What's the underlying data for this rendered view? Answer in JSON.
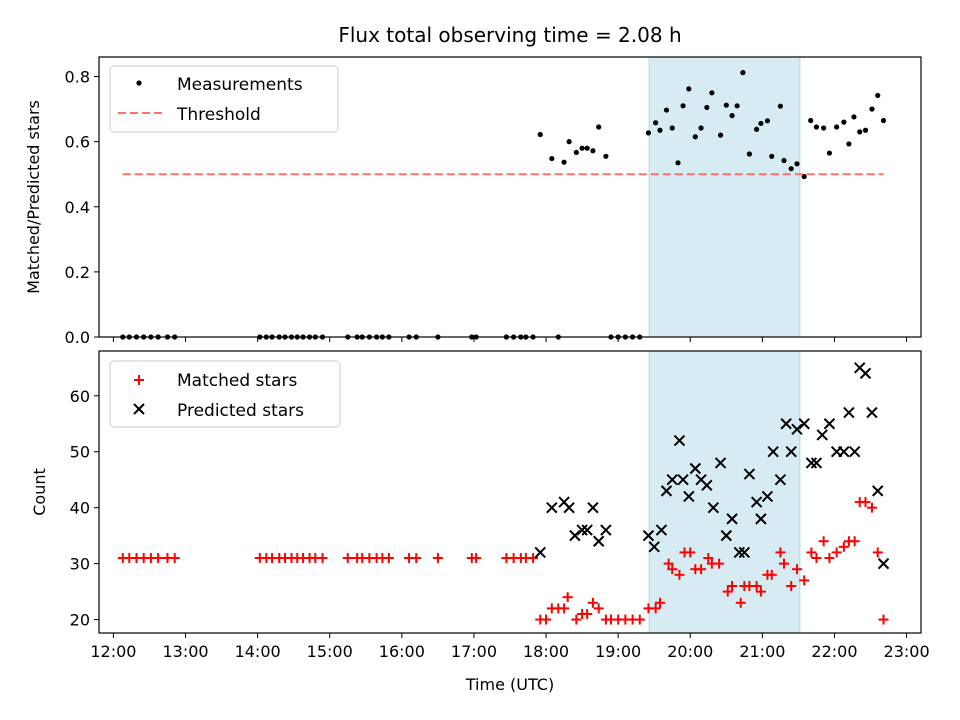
{
  "figure": {
    "title": "Flux total observing time = 2.08 h",
    "xlabel": "Time (UTC)"
  },
  "colors": {
    "measurement": "#000000",
    "threshold": "#ff7070",
    "matched": "#ff0000",
    "predicted": "#000000",
    "highlight": "#add8e6"
  },
  "chart_data": [
    {
      "type": "scatter",
      "ylabel": "Matched/Predicted stars",
      "xlim": [
        11.8,
        23.2
      ],
      "ylim": [
        0,
        0.86
      ],
      "yticks": [
        0.0,
        0.2,
        0.4,
        0.6,
        0.8
      ],
      "grid": false,
      "legend_position": "top-left",
      "highlight_span": [
        19.43,
        21.52
      ],
      "series": [
        {
          "name": "Measurements",
          "marker": "dot",
          "points": [
            [
              12.13,
              0
            ],
            [
              12.22,
              0
            ],
            [
              12.32,
              0
            ],
            [
              12.42,
              0
            ],
            [
              12.52,
              0
            ],
            [
              12.62,
              0
            ],
            [
              12.75,
              0
            ],
            [
              12.85,
              0
            ],
            [
              14.03,
              0
            ],
            [
              14.12,
              0
            ],
            [
              14.2,
              0
            ],
            [
              14.3,
              0
            ],
            [
              14.38,
              0
            ],
            [
              14.47,
              0
            ],
            [
              14.55,
              0
            ],
            [
              14.63,
              0
            ],
            [
              14.72,
              0
            ],
            [
              14.8,
              0
            ],
            [
              14.9,
              0
            ],
            [
              15.25,
              0
            ],
            [
              15.38,
              0
            ],
            [
              15.45,
              0
            ],
            [
              15.55,
              0
            ],
            [
              15.65,
              0
            ],
            [
              15.73,
              0
            ],
            [
              15.82,
              0
            ],
            [
              16.1,
              0
            ],
            [
              16.2,
              0
            ],
            [
              16.5,
              0
            ],
            [
              16.97,
              0
            ],
            [
              17.03,
              0
            ],
            [
              17.45,
              0
            ],
            [
              17.55,
              0
            ],
            [
              17.65,
              0
            ],
            [
              17.72,
              0
            ],
            [
              17.82,
              0
            ],
            [
              18.17,
              0
            ],
            [
              18.9,
              0
            ],
            [
              19.0,
              0
            ],
            [
              19.1,
              0
            ],
            [
              19.2,
              0
            ],
            [
              19.3,
              0
            ],
            [
              17.92,
              0.622
            ],
            [
              18.08,
              0.548
            ],
            [
              18.25,
              0.537
            ],
            [
              18.32,
              0.6
            ],
            [
              18.42,
              0.567
            ],
            [
              18.5,
              0.58
            ],
            [
              18.57,
              0.58
            ],
            [
              18.65,
              0.572
            ],
            [
              18.73,
              0.645
            ],
            [
              18.83,
              0.555
            ],
            [
              19.42,
              0.627
            ],
            [
              19.52,
              0.658
            ],
            [
              19.58,
              0.635
            ],
            [
              19.67,
              0.697
            ],
            [
              19.75,
              0.642
            ],
            [
              19.83,
              0.535
            ],
            [
              19.9,
              0.71
            ],
            [
              19.98,
              0.762
            ],
            [
              20.07,
              0.615
            ],
            [
              20.15,
              0.642
            ],
            [
              20.23,
              0.705
            ],
            [
              20.3,
              0.75
            ],
            [
              20.42,
              0.62
            ],
            [
              20.5,
              0.712
            ],
            [
              20.58,
              0.68
            ],
            [
              20.65,
              0.71
            ],
            [
              20.73,
              0.812
            ],
            [
              20.82,
              0.562
            ],
            [
              20.92,
              0.638
            ],
            [
              20.98,
              0.656
            ],
            [
              21.07,
              0.664
            ],
            [
              21.13,
              0.555
            ],
            [
              21.25,
              0.709
            ],
            [
              21.3,
              0.542
            ],
            [
              21.4,
              0.517
            ],
            [
              21.48,
              0.532
            ],
            [
              21.58,
              0.493
            ],
            [
              21.67,
              0.665
            ],
            [
              21.75,
              0.645
            ],
            [
              21.85,
              0.642
            ],
            [
              21.93,
              0.565
            ],
            [
              22.03,
              0.645
            ],
            [
              22.13,
              0.66
            ],
            [
              22.2,
              0.593
            ],
            [
              22.27,
              0.676
            ],
            [
              22.35,
              0.63
            ],
            [
              22.43,
              0.635
            ],
            [
              22.52,
              0.7
            ],
            [
              22.6,
              0.742
            ],
            [
              22.68,
              0.665
            ]
          ]
        },
        {
          "name": "Threshold",
          "marker": "dashed-line",
          "points": [
            [
              12.13,
              0.5
            ],
            [
              22.68,
              0.5
            ]
          ]
        }
      ]
    },
    {
      "type": "scatter",
      "ylabel": "Count",
      "xlabel": "Time (UTC)",
      "xlim": [
        11.8,
        23.2
      ],
      "ylim": [
        17.6,
        68.0
      ],
      "yticks": [
        20,
        30,
        40,
        50,
        60
      ],
      "xtick_positions": [
        12,
        13,
        14,
        15,
        16,
        17,
        18,
        19,
        20,
        21,
        22,
        23
      ],
      "xtick_labels": [
        "12:00",
        "13:00",
        "14:00",
        "15:00",
        "16:00",
        "17:00",
        "18:00",
        "19:00",
        "20:00",
        "21:00",
        "22:00",
        "23:00"
      ],
      "grid": false,
      "legend_position": "top-left",
      "highlight_span": [
        19.43,
        21.52
      ],
      "series": [
        {
          "name": "Matched stars",
          "marker": "plus",
          "points": [
            [
              12.13,
              31
            ],
            [
              12.22,
              31
            ],
            [
              12.32,
              31
            ],
            [
              12.42,
              31
            ],
            [
              12.52,
              31
            ],
            [
              12.62,
              31
            ],
            [
              12.75,
              31
            ],
            [
              12.85,
              31
            ],
            [
              14.03,
              31
            ],
            [
              14.12,
              31
            ],
            [
              14.2,
              31
            ],
            [
              14.3,
              31
            ],
            [
              14.38,
              31
            ],
            [
              14.47,
              31
            ],
            [
              14.55,
              31
            ],
            [
              14.63,
              31
            ],
            [
              14.72,
              31
            ],
            [
              14.8,
              31
            ],
            [
              14.9,
              31
            ],
            [
              15.25,
              31
            ],
            [
              15.38,
              31
            ],
            [
              15.45,
              31
            ],
            [
              15.55,
              31
            ],
            [
              15.65,
              31
            ],
            [
              15.73,
              31
            ],
            [
              15.82,
              31
            ],
            [
              16.1,
              31
            ],
            [
              16.2,
              31
            ],
            [
              16.5,
              31
            ],
            [
              16.97,
              31
            ],
            [
              17.03,
              31
            ],
            [
              17.45,
              31
            ],
            [
              17.55,
              31
            ],
            [
              17.65,
              31
            ],
            [
              17.72,
              31
            ],
            [
              17.82,
              31
            ],
            [
              17.92,
              20
            ],
            [
              18.0,
              20
            ],
            [
              18.08,
              22
            ],
            [
              18.17,
              22
            ],
            [
              18.25,
              22
            ],
            [
              18.3,
              24
            ],
            [
              18.42,
              20
            ],
            [
              18.5,
              21
            ],
            [
              18.57,
              21
            ],
            [
              18.65,
              23
            ],
            [
              18.73,
              22
            ],
            [
              18.83,
              20
            ],
            [
              18.9,
              20
            ],
            [
              19.0,
              20
            ],
            [
              19.1,
              20
            ],
            [
              19.2,
              20
            ],
            [
              19.3,
              20
            ],
            [
              19.42,
              22
            ],
            [
              19.52,
              22
            ],
            [
              19.58,
              23
            ],
            [
              19.7,
              30
            ],
            [
              19.75,
              29
            ],
            [
              19.85,
              28
            ],
            [
              19.92,
              32
            ],
            [
              20.0,
              32
            ],
            [
              20.07,
              29
            ],
            [
              20.15,
              29
            ],
            [
              20.25,
              31
            ],
            [
              20.3,
              30
            ],
            [
              20.4,
              30
            ],
            [
              20.52,
              25
            ],
            [
              20.58,
              26
            ],
            [
              20.7,
              23
            ],
            [
              20.75,
              26
            ],
            [
              20.82,
              26
            ],
            [
              20.92,
              26
            ],
            [
              20.98,
              25
            ],
            [
              21.07,
              28
            ],
            [
              21.13,
              28
            ],
            [
              21.25,
              32
            ],
            [
              21.3,
              30
            ],
            [
              21.4,
              26
            ],
            [
              21.48,
              29
            ],
            [
              21.58,
              27
            ],
            [
              21.68,
              32
            ],
            [
              21.75,
              31
            ],
            [
              21.85,
              34
            ],
            [
              21.93,
              31
            ],
            [
              22.03,
              32
            ],
            [
              22.13,
              33
            ],
            [
              22.2,
              34
            ],
            [
              22.28,
              34
            ],
            [
              22.35,
              41
            ],
            [
              22.43,
              41
            ],
            [
              22.52,
              40
            ],
            [
              22.6,
              32
            ],
            [
              22.68,
              20
            ]
          ]
        },
        {
          "name": "Predicted stars",
          "marker": "x",
          "points": [
            [
              17.92,
              32
            ],
            [
              18.08,
              40
            ],
            [
              18.25,
              41
            ],
            [
              18.32,
              40
            ],
            [
              18.4,
              35
            ],
            [
              18.5,
              36
            ],
            [
              18.57,
              36
            ],
            [
              18.65,
              40
            ],
            [
              18.73,
              34
            ],
            [
              18.83,
              36
            ],
            [
              19.42,
              35
            ],
            [
              19.5,
              33
            ],
            [
              19.6,
              36
            ],
            [
              19.67,
              43
            ],
            [
              19.75,
              45
            ],
            [
              19.85,
              52
            ],
            [
              19.9,
              45
            ],
            [
              19.98,
              42
            ],
            [
              20.07,
              47
            ],
            [
              20.15,
              45
            ],
            [
              20.23,
              44
            ],
            [
              20.32,
              40
            ],
            [
              20.42,
              48
            ],
            [
              20.5,
              35
            ],
            [
              20.58,
              38
            ],
            [
              20.68,
              32
            ],
            [
              20.75,
              32
            ],
            [
              20.82,
              46
            ],
            [
              20.92,
              41
            ],
            [
              20.98,
              38
            ],
            [
              21.07,
              42
            ],
            [
              21.15,
              50
            ],
            [
              21.25,
              45
            ],
            [
              21.33,
              55
            ],
            [
              21.4,
              50
            ],
            [
              21.48,
              54
            ],
            [
              21.58,
              55
            ],
            [
              21.68,
              48
            ],
            [
              21.75,
              48
            ],
            [
              21.83,
              53
            ],
            [
              21.93,
              55
            ],
            [
              22.03,
              50
            ],
            [
              22.13,
              50
            ],
            [
              22.2,
              57
            ],
            [
              22.28,
              50
            ],
            [
              22.35,
              65
            ],
            [
              22.43,
              64
            ],
            [
              22.52,
              57
            ],
            [
              22.6,
              43
            ],
            [
              22.68,
              30
            ]
          ]
        }
      ]
    }
  ]
}
